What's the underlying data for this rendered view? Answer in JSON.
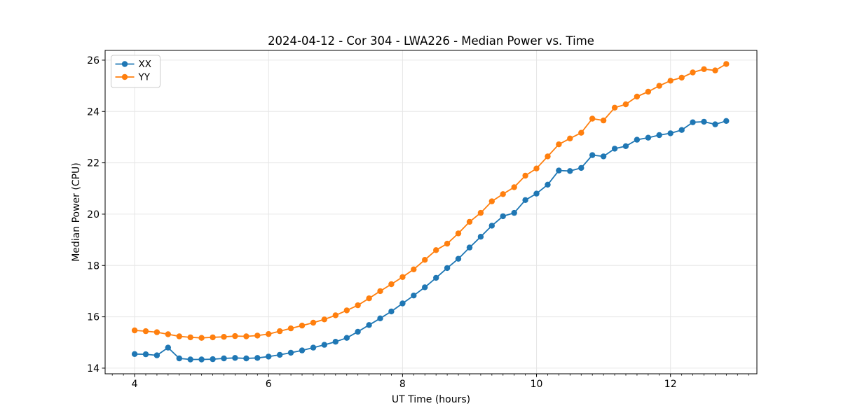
{
  "chart_data": {
    "type": "line",
    "title": "2024-04-12 - Cor 304 - LWA226 - Median Power vs. Time",
    "xlabel": "UT Time (hours)",
    "ylabel": "Median Power (CPU)",
    "xlim": [
      3.56,
      13.29
    ],
    "ylim": [
      13.78,
      26.38
    ],
    "x_major_ticks": [
      4,
      6,
      8,
      10,
      12
    ],
    "y_major_ticks": [
      14,
      16,
      18,
      20,
      22,
      24,
      26
    ],
    "x_minor_tick_interval": 0.16667,
    "grid": true,
    "grid_color": "#e6e6e6",
    "legend_position": "upper-left",
    "marker": "circle",
    "x": [
      4.0,
      4.167,
      4.333,
      4.5,
      4.667,
      4.833,
      5.0,
      5.167,
      5.333,
      5.5,
      5.667,
      5.833,
      6.0,
      6.167,
      6.333,
      6.5,
      6.667,
      6.833,
      7.0,
      7.167,
      7.333,
      7.5,
      7.667,
      7.833,
      8.0,
      8.167,
      8.333,
      8.5,
      8.667,
      8.833,
      9.0,
      9.167,
      9.333,
      9.5,
      9.667,
      9.833,
      10.0,
      10.167,
      10.333,
      10.5,
      10.667,
      10.833,
      11.0,
      11.167,
      11.333,
      11.5,
      11.667,
      11.833,
      12.0,
      12.167,
      12.333,
      12.5,
      12.667,
      12.833
    ],
    "series": [
      {
        "name": "XX",
        "color": "#1f77b4",
        "values": [
          14.55,
          14.54,
          14.5,
          14.8,
          14.38,
          14.34,
          14.34,
          14.35,
          14.38,
          14.4,
          14.38,
          14.4,
          14.45,
          14.52,
          14.6,
          14.69,
          14.8,
          14.91,
          15.03,
          15.18,
          15.42,
          15.68,
          15.94,
          16.21,
          16.52,
          16.83,
          17.15,
          17.52,
          17.9,
          18.26,
          18.7,
          19.12,
          19.55,
          19.92,
          20.05,
          20.55,
          20.8,
          21.15,
          21.7,
          21.68,
          21.8,
          22.3,
          22.25,
          22.55,
          22.65,
          22.9,
          22.98,
          23.08,
          23.15,
          23.28,
          23.58,
          23.6,
          23.5,
          23.63
        ]
      },
      {
        "name": "YY",
        "color": "#ff7f0e",
        "values": [
          15.47,
          15.44,
          15.4,
          15.32,
          15.24,
          15.2,
          15.18,
          15.2,
          15.22,
          15.25,
          15.24,
          15.27,
          15.33,
          15.44,
          15.55,
          15.66,
          15.77,
          15.9,
          16.06,
          16.25,
          16.45,
          16.72,
          17.0,
          17.27,
          17.55,
          17.85,
          18.22,
          18.6,
          18.85,
          19.25,
          19.7,
          20.05,
          20.5,
          20.78,
          21.05,
          21.5,
          21.78,
          22.25,
          22.72,
          22.95,
          23.17,
          23.72,
          23.65,
          24.15,
          24.28,
          24.58,
          24.77,
          25.0,
          25.2,
          25.32,
          25.52,
          25.65,
          25.6,
          25.85
        ]
      }
    ]
  },
  "colors": {
    "spine": "#000000",
    "background": "#ffffff",
    "legend_border": "#cccccc"
  }
}
